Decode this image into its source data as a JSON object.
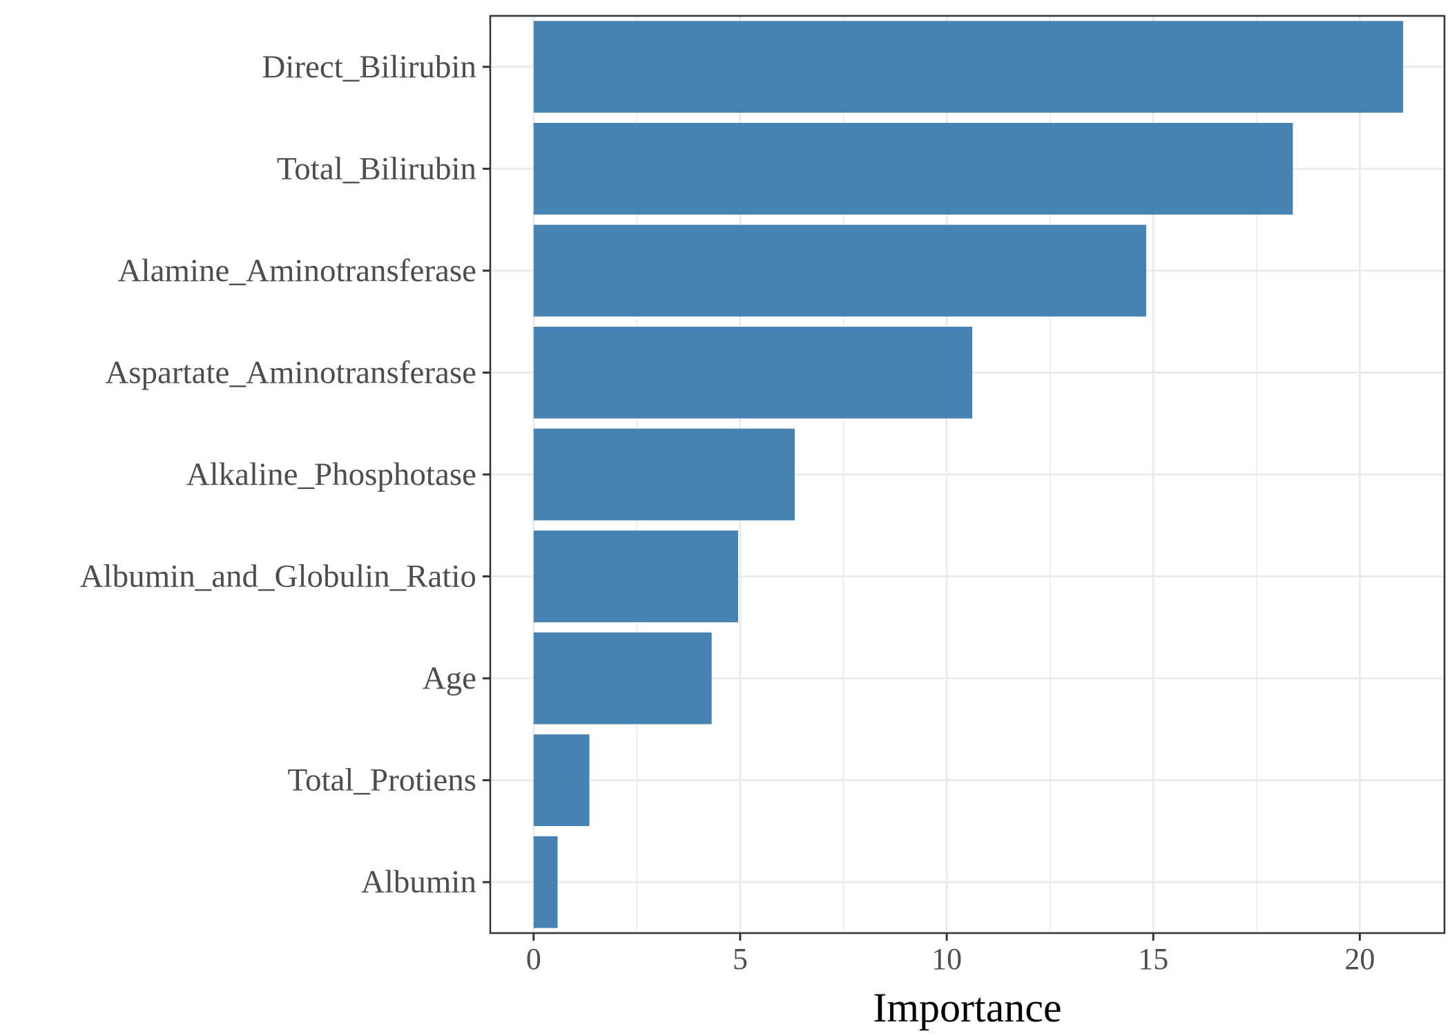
{
  "chart_data": {
    "type": "bar",
    "orientation": "horizontal",
    "categories": [
      "Direct_Bilirubin",
      "Total_Bilirubin",
      "Alamine_Aminotransferase",
      "Aspartate_Aminotransferase",
      "Alkaline_Phosphotase",
      "Albumin_and_Globulin_Ratio",
      "Age",
      "Total_Protiens",
      "Albumin"
    ],
    "values": [
      21.05,
      18.38,
      14.83,
      10.62,
      6.32,
      4.95,
      4.31,
      1.35,
      0.58
    ],
    "xlabel": "Importance",
    "ylabel": "",
    "title": "",
    "xlim": [
      -1.05,
      22.05
    ],
    "xticks": [
      0,
      5,
      10,
      15,
      20
    ],
    "grid": true,
    "bar_color": "#4682B4",
    "grid_color": "#ebebeb",
    "frame_color": "#333333"
  }
}
